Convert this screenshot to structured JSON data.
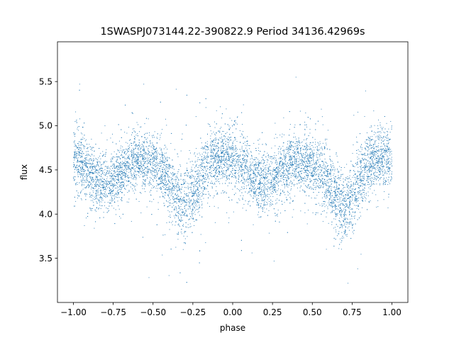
{
  "chart_data": {
    "type": "scatter",
    "title": "1SWASPJ073144.22-390822.9 Period 34136.42969s",
    "xlabel": "phase",
    "ylabel": "flux",
    "xlim": [
      -1.1,
      1.1
    ],
    "ylim": [
      3.0,
      5.95
    ],
    "grid": false,
    "legend": "none",
    "xticks": [
      -1.0,
      -0.75,
      -0.5,
      -0.25,
      0.0,
      0.25,
      0.5,
      0.75,
      1.0
    ],
    "xtick_labels": [
      "−1.00",
      "−0.75",
      "−0.50",
      "−0.25",
      "0.00",
      "0.25",
      "0.50",
      "0.75",
      "1.00"
    ],
    "yticks": [
      3.5,
      4.0,
      4.5,
      5.0,
      5.5
    ],
    "ytick_labels": [
      "3.5",
      "4.0",
      "4.5",
      "5.0",
      "5.5"
    ],
    "marker_color": "#1f77b4",
    "series": [
      {
        "x": [
          -1.0,
          -0.95,
          -0.9,
          -0.85,
          -0.8,
          -0.75,
          -0.7,
          -0.65,
          -0.6,
          -0.55,
          -0.5,
          -0.45,
          -0.4,
          -0.35,
          -0.3,
          -0.25,
          -0.2,
          -0.15,
          -0.1,
          -0.05,
          0.0,
          0.05,
          0.1,
          0.15,
          0.2,
          0.25,
          0.3,
          0.35,
          0.4,
          0.45,
          0.5,
          0.55,
          0.6,
          0.65,
          0.7,
          0.75,
          0.8,
          0.85,
          0.9,
          0.95,
          1.0
        ],
        "values": [
          4.62,
          4.58,
          4.47,
          4.38,
          4.34,
          4.38,
          4.48,
          4.56,
          4.6,
          4.6,
          4.56,
          4.48,
          4.35,
          4.18,
          4.08,
          4.2,
          4.42,
          4.56,
          4.63,
          4.65,
          4.64,
          4.56,
          4.47,
          4.38,
          4.34,
          4.39,
          4.48,
          4.55,
          4.6,
          4.6,
          4.56,
          4.48,
          4.35,
          4.18,
          4.08,
          4.2,
          4.42,
          4.56,
          4.62,
          4.64,
          4.62
        ],
        "spread": [
          0.18,
          0.18,
          0.17,
          0.17,
          0.16,
          0.16,
          0.16,
          0.16,
          0.16,
          0.16,
          0.16,
          0.17,
          0.18,
          0.2,
          0.21,
          0.2,
          0.18,
          0.17,
          0.17,
          0.17,
          0.17,
          0.17,
          0.17,
          0.16,
          0.16,
          0.16,
          0.16,
          0.16,
          0.16,
          0.16,
          0.16,
          0.17,
          0.18,
          0.2,
          0.21,
          0.2,
          0.18,
          0.17,
          0.17,
          0.17,
          0.18
        ]
      }
    ]
  }
}
